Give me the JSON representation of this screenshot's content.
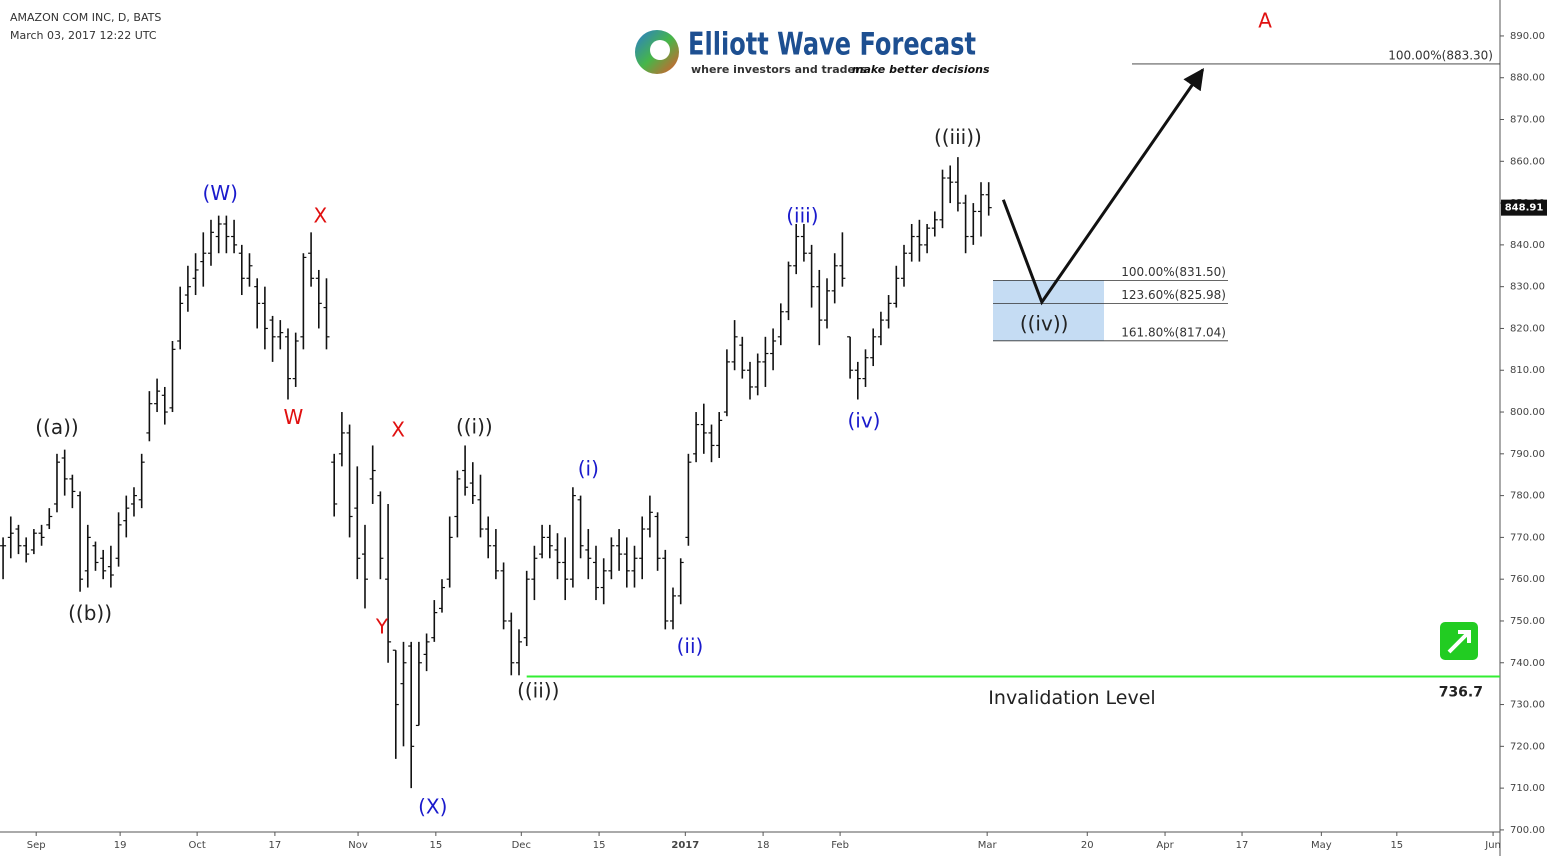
{
  "chart_data": {
    "type": "ohlc",
    "title": "AMAZON COM INC, D, BATS",
    "subtitle": "March 03, 2017 12:22 UTC",
    "logo": {
      "name": "Elliott Wave Forecast",
      "tagline_1": "where investors and traders",
      "tagline_2": "make better decisions"
    },
    "color": "#111111",
    "open": [
      768,
      770,
      772,
      768,
      767,
      771,
      773,
      778,
      789,
      784,
      780,
      762,
      768,
      765,
      763,
      765,
      774,
      778,
      779,
      795,
      802,
      804,
      801,
      817,
      828,
      832,
      836,
      838,
      842,
      845,
      842,
      838,
      832,
      830,
      826,
      822,
      818,
      818,
      808,
      818,
      838,
      832,
      825,
      788,
      790,
      795,
      777,
      766,
      784,
      780,
      760,
      743,
      735,
      744,
      725,
      742,
      746,
      753,
      760,
      775,
      786,
      783,
      779,
      772,
      768,
      762,
      750,
      740,
      746,
      760,
      766,
      770,
      767,
      764,
      760,
      779,
      767,
      764,
      758,
      762,
      768,
      766,
      762,
      765,
      772,
      775,
      765,
      750,
      756,
      770,
      790,
      797,
      795,
      792,
      800,
      812,
      816,
      810,
      806,
      812,
      814,
      818,
      824,
      835,
      842,
      838,
      830,
      822,
      829,
      835,
      818,
      810,
      808,
      813,
      818,
      822,
      826,
      832,
      838,
      842,
      840,
      844,
      846,
      856,
      855,
      850,
      842,
      848,
      852
    ],
    "high": [
      770,
      775,
      773,
      770,
      772,
      773,
      777,
      790,
      791,
      785,
      781,
      773,
      769,
      767,
      768,
      776,
      780,
      782,
      790,
      805,
      808,
      806,
      817,
      830,
      835,
      838,
      843,
      846,
      847,
      847,
      846,
      840,
      838,
      832,
      830,
      823,
      822,
      820,
      819,
      838,
      843,
      834,
      832,
      790,
      800,
      797,
      787,
      773,
      792,
      781,
      778,
      743,
      745,
      745,
      745,
      747,
      755,
      760,
      775,
      786,
      792,
      788,
      785,
      775,
      772,
      764,
      752,
      748,
      762,
      768,
      773,
      773,
      771,
      770,
      782,
      780,
      772,
      768,
      765,
      770,
      772,
      770,
      768,
      775,
      780,
      776,
      767,
      758,
      765,
      790,
      800,
      802,
      797,
      800,
      815,
      822,
      818,
      812,
      814,
      818,
      820,
      826,
      836,
      845,
      845,
      840,
      834,
      832,
      838,
      843,
      818,
      812,
      815,
      820,
      824,
      828,
      835,
      840,
      845,
      846,
      845,
      848,
      858,
      859,
      861,
      852,
      850,
      855,
      855
    ],
    "low": [
      760,
      765,
      766,
      764,
      766,
      768,
      772,
      776,
      780,
      777,
      757,
      758,
      762,
      760,
      758,
      763,
      770,
      775,
      777,
      793,
      800,
      797,
      800,
      815,
      824,
      828,
      830,
      835,
      838,
      838,
      838,
      828,
      830,
      820,
      815,
      812,
      815,
      803,
      806,
      815,
      830,
      820,
      815,
      775,
      787,
      770,
      760,
      753,
      778,
      760,
      740,
      717,
      720,
      710,
      725,
      738,
      745,
      752,
      758,
      770,
      780,
      778,
      770,
      765,
      760,
      748,
      737,
      737,
      744,
      755,
      765,
      765,
      760,
      755,
      758,
      765,
      760,
      755,
      754,
      760,
      762,
      758,
      758,
      760,
      770,
      762,
      748,
      748,
      754,
      768,
      788,
      790,
      788,
      789,
      799,
      810,
      808,
      803,
      804,
      806,
      810,
      816,
      822,
      833,
      836,
      825,
      816,
      820,
      826,
      830,
      808,
      803,
      806,
      811,
      816,
      820,
      825,
      830,
      836,
      836,
      838,
      842,
      844,
      850,
      848,
      838,
      840,
      842,
      847
    ],
    "close": [
      768,
      771,
      768,
      766,
      771,
      770,
      775,
      788,
      784,
      781,
      760,
      770,
      764,
      762,
      761,
      773,
      777,
      780,
      788,
      802,
      805,
      800,
      815,
      826,
      830,
      834,
      838,
      843,
      845,
      842,
      840,
      832,
      835,
      826,
      820,
      818,
      819,
      808,
      817,
      837,
      832,
      826,
      818,
      778,
      795,
      775,
      765,
      760,
      786,
      765,
      745,
      730,
      740,
      720,
      740,
      745,
      752,
      758,
      770,
      784,
      782,
      780,
      772,
      768,
      762,
      750,
      740,
      745,
      760,
      765,
      770,
      768,
      764,
      760,
      780,
      768,
      765,
      758,
      762,
      768,
      766,
      762,
      765,
      772,
      776,
      765,
      750,
      756,
      764,
      788,
      797,
      795,
      792,
      798,
      812,
      818,
      810,
      806,
      812,
      814,
      817,
      824,
      835,
      842,
      838,
      830,
      822,
      829,
      835,
      832,
      810,
      808,
      813,
      818,
      822,
      826,
      832,
      838,
      842,
      840,
      844,
      846,
      856,
      855,
      850,
      842,
      848,
      852,
      848.91
    ],
    "xlim": [
      -0.4,
      194.4
    ],
    "xticks": [
      {
        "value": 4.3,
        "label": "Sep"
      },
      {
        "value": 15.2,
        "label": "19"
      },
      {
        "value": 25.2,
        "label": "Oct"
      },
      {
        "value": 35.3,
        "label": "17"
      },
      {
        "value": 46.1,
        "label": "Nov"
      },
      {
        "value": 56.2,
        "label": "15"
      },
      {
        "value": 67.3,
        "label": "Dec"
      },
      {
        "value": 77.4,
        "label": "15"
      },
      {
        "value": 88.6,
        "label": "2017"
      },
      {
        "value": 98.7,
        "label": "18"
      },
      {
        "value": 108.7,
        "label": "Feb"
      },
      {
        "value": 127.8,
        "label": "Mar"
      },
      {
        "value": 140.8,
        "label": "20"
      },
      {
        "value": 150.9,
        "label": "Apr"
      },
      {
        "value": 160.9,
        "label": "17"
      },
      {
        "value": 171.2,
        "label": "May"
      },
      {
        "value": 181,
        "label": "15"
      },
      {
        "value": 193.5,
        "label": "Jun"
      }
    ],
    "ylim": [
      699.5,
      898.6
    ],
    "yticks": [
      {
        "value": 700,
        "label": "700.00"
      },
      {
        "value": 710,
        "label": "710.00"
      },
      {
        "value": 720,
        "label": "720.00"
      },
      {
        "value": 730,
        "label": "730.00"
      },
      {
        "value": 740,
        "label": "740.00"
      },
      {
        "value": 750,
        "label": "750.00"
      },
      {
        "value": 760,
        "label": "760.00"
      },
      {
        "value": 770,
        "label": "770.00"
      },
      {
        "value": 780,
        "label": "780.00"
      },
      {
        "value": 790,
        "label": "790.00"
      },
      {
        "value": 800,
        "label": "800.00"
      },
      {
        "value": 810,
        "label": "810.00"
      },
      {
        "value": 820,
        "label": "820.00"
      },
      {
        "value": 830,
        "label": "830.00"
      },
      {
        "value": 840,
        "label": "840.00"
      },
      {
        "value": 850,
        "label": "850.00"
      },
      {
        "value": 860,
        "label": "860.00"
      },
      {
        "value": 870,
        "label": "870.00"
      },
      {
        "value": 880,
        "label": "880.00"
      },
      {
        "value": 890,
        "label": "890.00"
      }
    ],
    "annotations": [
      {
        "text": "((a))",
        "color": "#222222",
        "x": 7,
        "y": 796
      },
      {
        "text": "((b))",
        "color": "#222222",
        "x": 11.3,
        "y": 751.5
      },
      {
        "text": "(W)",
        "color": "#1a1acc",
        "x": 28.2,
        "y": 852
      },
      {
        "text": "X",
        "color": "#e01010",
        "x": 41.2,
        "y": 846.7
      },
      {
        "text": "W",
        "color": "#e01010",
        "x": 37.7,
        "y": 798.4
      },
      {
        "text": "X",
        "color": "#e01010",
        "x": 51.3,
        "y": 795.5
      },
      {
        "text": "Y",
        "color": "#e01010",
        "x": 49.2,
        "y": 748.3
      },
      {
        "text": "(X)",
        "color": "#1a1acc",
        "x": 55.8,
        "y": 705.3
      },
      {
        "text": "((i))",
        "color": "#222222",
        "x": 61.2,
        "y": 796.2
      },
      {
        "text": "((ii))",
        "color": "#222222",
        "x": 69.5,
        "y": 733
      },
      {
        "text": "(i)",
        "color": "#1a1acc",
        "x": 76,
        "y": 786.1
      },
      {
        "text": "(ii)",
        "color": "#1a1acc",
        "x": 89.2,
        "y": 743.6
      },
      {
        "text": "(iii)",
        "color": "#1a1acc",
        "x": 103.8,
        "y": 846.7
      },
      {
        "text": "(iv)",
        "color": "#1a1acc",
        "x": 111.8,
        "y": 797.6
      },
      {
        "text": "((iii))",
        "color": "#222222",
        "x": 124,
        "y": 865.4
      },
      {
        "text": "((iv))",
        "color": "#222222",
        "x": 135.2,
        "y": 820.8
      },
      {
        "text": "A",
        "color": "#e01010",
        "x": 163.9,
        "y": 893.3
      }
    ],
    "fib_levels": [
      {
        "value": 831.5,
        "label": "100.00%(831.50)"
      },
      {
        "value": 825.98,
        "label": "123.60%(825.98)"
      },
      {
        "value": 817.04,
        "label": "161.80%(817.04)"
      }
    ],
    "target": {
      "value": 883.3,
      "label": "100.00%(883.30)"
    },
    "projection": {
      "x": [
        129.9,
        134.9,
        155.8
      ],
      "y": [
        850.8,
        826.3,
        881.9
      ]
    },
    "invalidation": {
      "value": 736.7,
      "text": "Invalidation Level",
      "color": "#33ee33"
    }
  }
}
